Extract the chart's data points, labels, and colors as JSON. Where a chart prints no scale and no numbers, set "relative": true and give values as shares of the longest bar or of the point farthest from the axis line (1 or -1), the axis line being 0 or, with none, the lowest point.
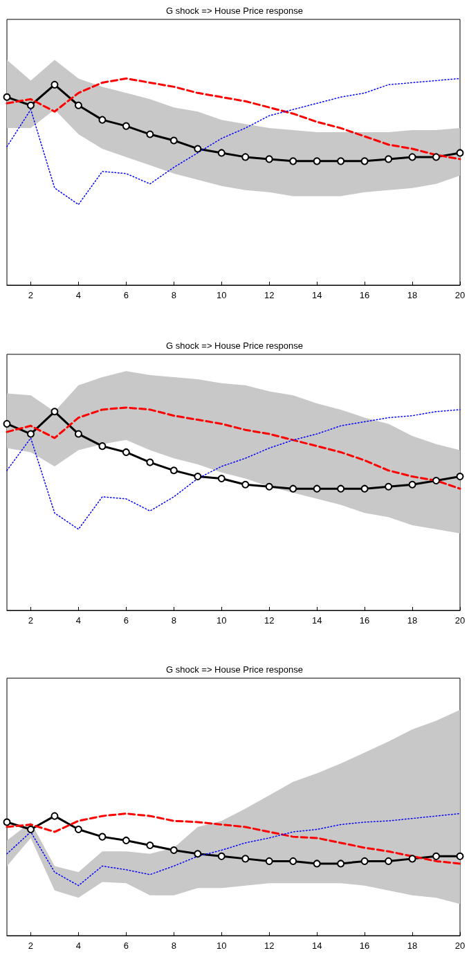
{
  "chart_data": [
    {
      "type": "line",
      "title": "G shock => House Price response",
      "relative": true,
      "x": [
        1,
        2,
        3,
        4,
        5,
        6,
        7,
        8,
        9,
        10,
        11,
        12,
        13,
        14,
        15,
        16,
        17,
        18,
        19,
        20
      ],
      "xlim": [
        1,
        20
      ],
      "xticks": [
        2,
        4,
        6,
        8,
        10,
        12,
        14,
        16,
        18,
        20
      ],
      "tick_labels": "x",
      "series": [
        {
          "color": "#000000",
          "marker": "circle",
          "line_style": "solid",
          "values": [
            0.91,
            0.87,
            0.97,
            0.87,
            0.8,
            0.77,
            0.73,
            0.7,
            0.66,
            0.64,
            0.62,
            0.61,
            0.6,
            0.6,
            0.6,
            0.6,
            0.61,
            0.62,
            0.62,
            0.64
          ],
          "upper": [
            1.09,
            0.99,
            1.09,
            1,
            0.96,
            0.93,
            0.9,
            0.86,
            0.84,
            0.8,
            0.78,
            0.76,
            0.75,
            0.74,
            0.74,
            0.74,
            0.74,
            0.75,
            0.75,
            0.76
          ],
          "lower": [
            0.76,
            0.76,
            0.85,
            0.73,
            0.66,
            0.62,
            0.58,
            0.54,
            0.51,
            0.48,
            0.46,
            0.45,
            0.43,
            0.43,
            0.43,
            0.45,
            0.46,
            0.47,
            0.49,
            0.53
          ]
        },
        {
          "color": "#ff0000",
          "marker": "none",
          "line_style": "dashed",
          "values": [
            0.88,
            0.9,
            0.84,
            0.93,
            0.98,
            1,
            0.98,
            0.96,
            0.93,
            0.91,
            0.89,
            0.86,
            0.83,
            0.79,
            0.76,
            0.72,
            0.68,
            0.66,
            0.63,
            0.61
          ]
        },
        {
          "color": "#0000ff",
          "marker": "none",
          "line_style": "dotted",
          "values": [
            0.67,
            0.85,
            0.47,
            0.39,
            0.55,
            0.54,
            0.49,
            0.57,
            0.64,
            0.71,
            0.76,
            0.82,
            0.85,
            0.88,
            0.91,
            0.93,
            0.97,
            0.98,
            0.99,
            1
          ]
        }
      ]
    },
    {
      "type": "line",
      "title": "G shock => House Price response",
      "relative": true,
      "x": [
        1,
        2,
        3,
        4,
        5,
        6,
        7,
        8,
        9,
        10,
        11,
        12,
        13,
        14,
        15,
        16,
        17,
        18,
        19,
        20
      ],
      "xlim": [
        1,
        20
      ],
      "xticks": [
        2,
        4,
        6,
        8,
        10,
        12,
        14,
        16,
        18,
        20
      ],
      "tick_labels": "x",
      "series": [
        {
          "color": "#000000",
          "marker": "circle",
          "line_style": "solid",
          "values": [
            0.92,
            0.87,
            0.98,
            0.87,
            0.81,
            0.78,
            0.73,
            0.69,
            0.66,
            0.65,
            0.62,
            0.61,
            0.6,
            0.6,
            0.6,
            0.6,
            0.61,
            0.62,
            0.64,
            0.66
          ],
          "upper": [
            1.07,
            1.06,
            0.98,
            1.11,
            1.15,
            1.18,
            1.16,
            1.15,
            1.14,
            1.12,
            1.11,
            1.08,
            1.06,
            1.02,
            0.99,
            0.95,
            0.92,
            0.86,
            0.82,
            0.79
          ],
          "lower": [
            0.8,
            0.78,
            0.71,
            0.79,
            0.82,
            0.84,
            0.79,
            0.75,
            0.72,
            0.68,
            0.65,
            0.61,
            0.58,
            0.55,
            0.52,
            0.48,
            0.46,
            0.42,
            0.4,
            0.38
          ]
        },
        {
          "color": "#ff0000",
          "marker": "none",
          "line_style": "dashed",
          "values": [
            0.88,
            0.91,
            0.85,
            0.95,
            0.99,
            1,
            0.99,
            0.96,
            0.94,
            0.92,
            0.89,
            0.87,
            0.84,
            0.81,
            0.78,
            0.74,
            0.69,
            0.66,
            0.64,
            0.6
          ]
        },
        {
          "color": "#0000ff",
          "marker": "none",
          "line_style": "dotted",
          "values": [
            0.69,
            0.85,
            0.48,
            0.4,
            0.56,
            0.55,
            0.49,
            0.56,
            0.65,
            0.71,
            0.75,
            0.8,
            0.84,
            0.87,
            0.91,
            0.93,
            0.95,
            0.96,
            0.98,
            0.99
          ]
        }
      ]
    },
    {
      "type": "line",
      "title": "G shock => House Price response",
      "relative": true,
      "x": [
        1,
        2,
        3,
        4,
        5,
        6,
        7,
        8,
        9,
        10,
        11,
        12,
        13,
        14,
        15,
        16,
        17,
        18,
        19,
        20
      ],
      "xlim": [
        1,
        20
      ],
      "xticks": [
        2,
        4,
        6,
        8,
        10,
        12,
        14,
        16,
        18,
        20
      ],
      "tick_labels": "x",
      "series": [
        {
          "color": "#000000",
          "marker": "circle",
          "line_style": "solid",
          "values": [
            0.93,
            0.87,
            0.98,
            0.87,
            0.81,
            0.78,
            0.74,
            0.7,
            0.67,
            0.65,
            0.63,
            0.61,
            0.61,
            0.59,
            0.59,
            0.61,
            0.61,
            0.63,
            0.65,
            0.65
          ],
          "upper": [
            0.78,
            0.93,
            0.57,
            0.52,
            0.69,
            0.69,
            0.67,
            0.72,
            0.89,
            0.94,
            1.04,
            1.15,
            1.26,
            1.33,
            1.41,
            1.5,
            1.59,
            1.69,
            1.76,
            1.85
          ],
          "lower": [
            0.57,
            0.8,
            0.37,
            0.31,
            0.44,
            0.43,
            0.33,
            0.33,
            0.39,
            0.39,
            0.41,
            0.43,
            0.43,
            0.43,
            0.43,
            0.41,
            0.37,
            0.33,
            0.31,
            0.26
          ]
        },
        {
          "color": "#ff0000",
          "marker": "none",
          "line_style": "dashed",
          "values": [
            0.89,
            0.91,
            0.85,
            0.94,
            0.98,
            1,
            0.98,
            0.94,
            0.93,
            0.91,
            0.89,
            0.85,
            0.81,
            0.8,
            0.76,
            0.72,
            0.69,
            0.65,
            0.61,
            0.59
          ]
        },
        {
          "color": "#0000ff",
          "marker": "none",
          "line_style": "dotted",
          "values": [
            0.67,
            0.85,
            0.52,
            0.41,
            0.57,
            0.54,
            0.5,
            0.57,
            0.65,
            0.7,
            0.76,
            0.8,
            0.85,
            0.87,
            0.91,
            0.93,
            0.94,
            0.96,
            0.98,
            1
          ]
        }
      ]
    }
  ]
}
